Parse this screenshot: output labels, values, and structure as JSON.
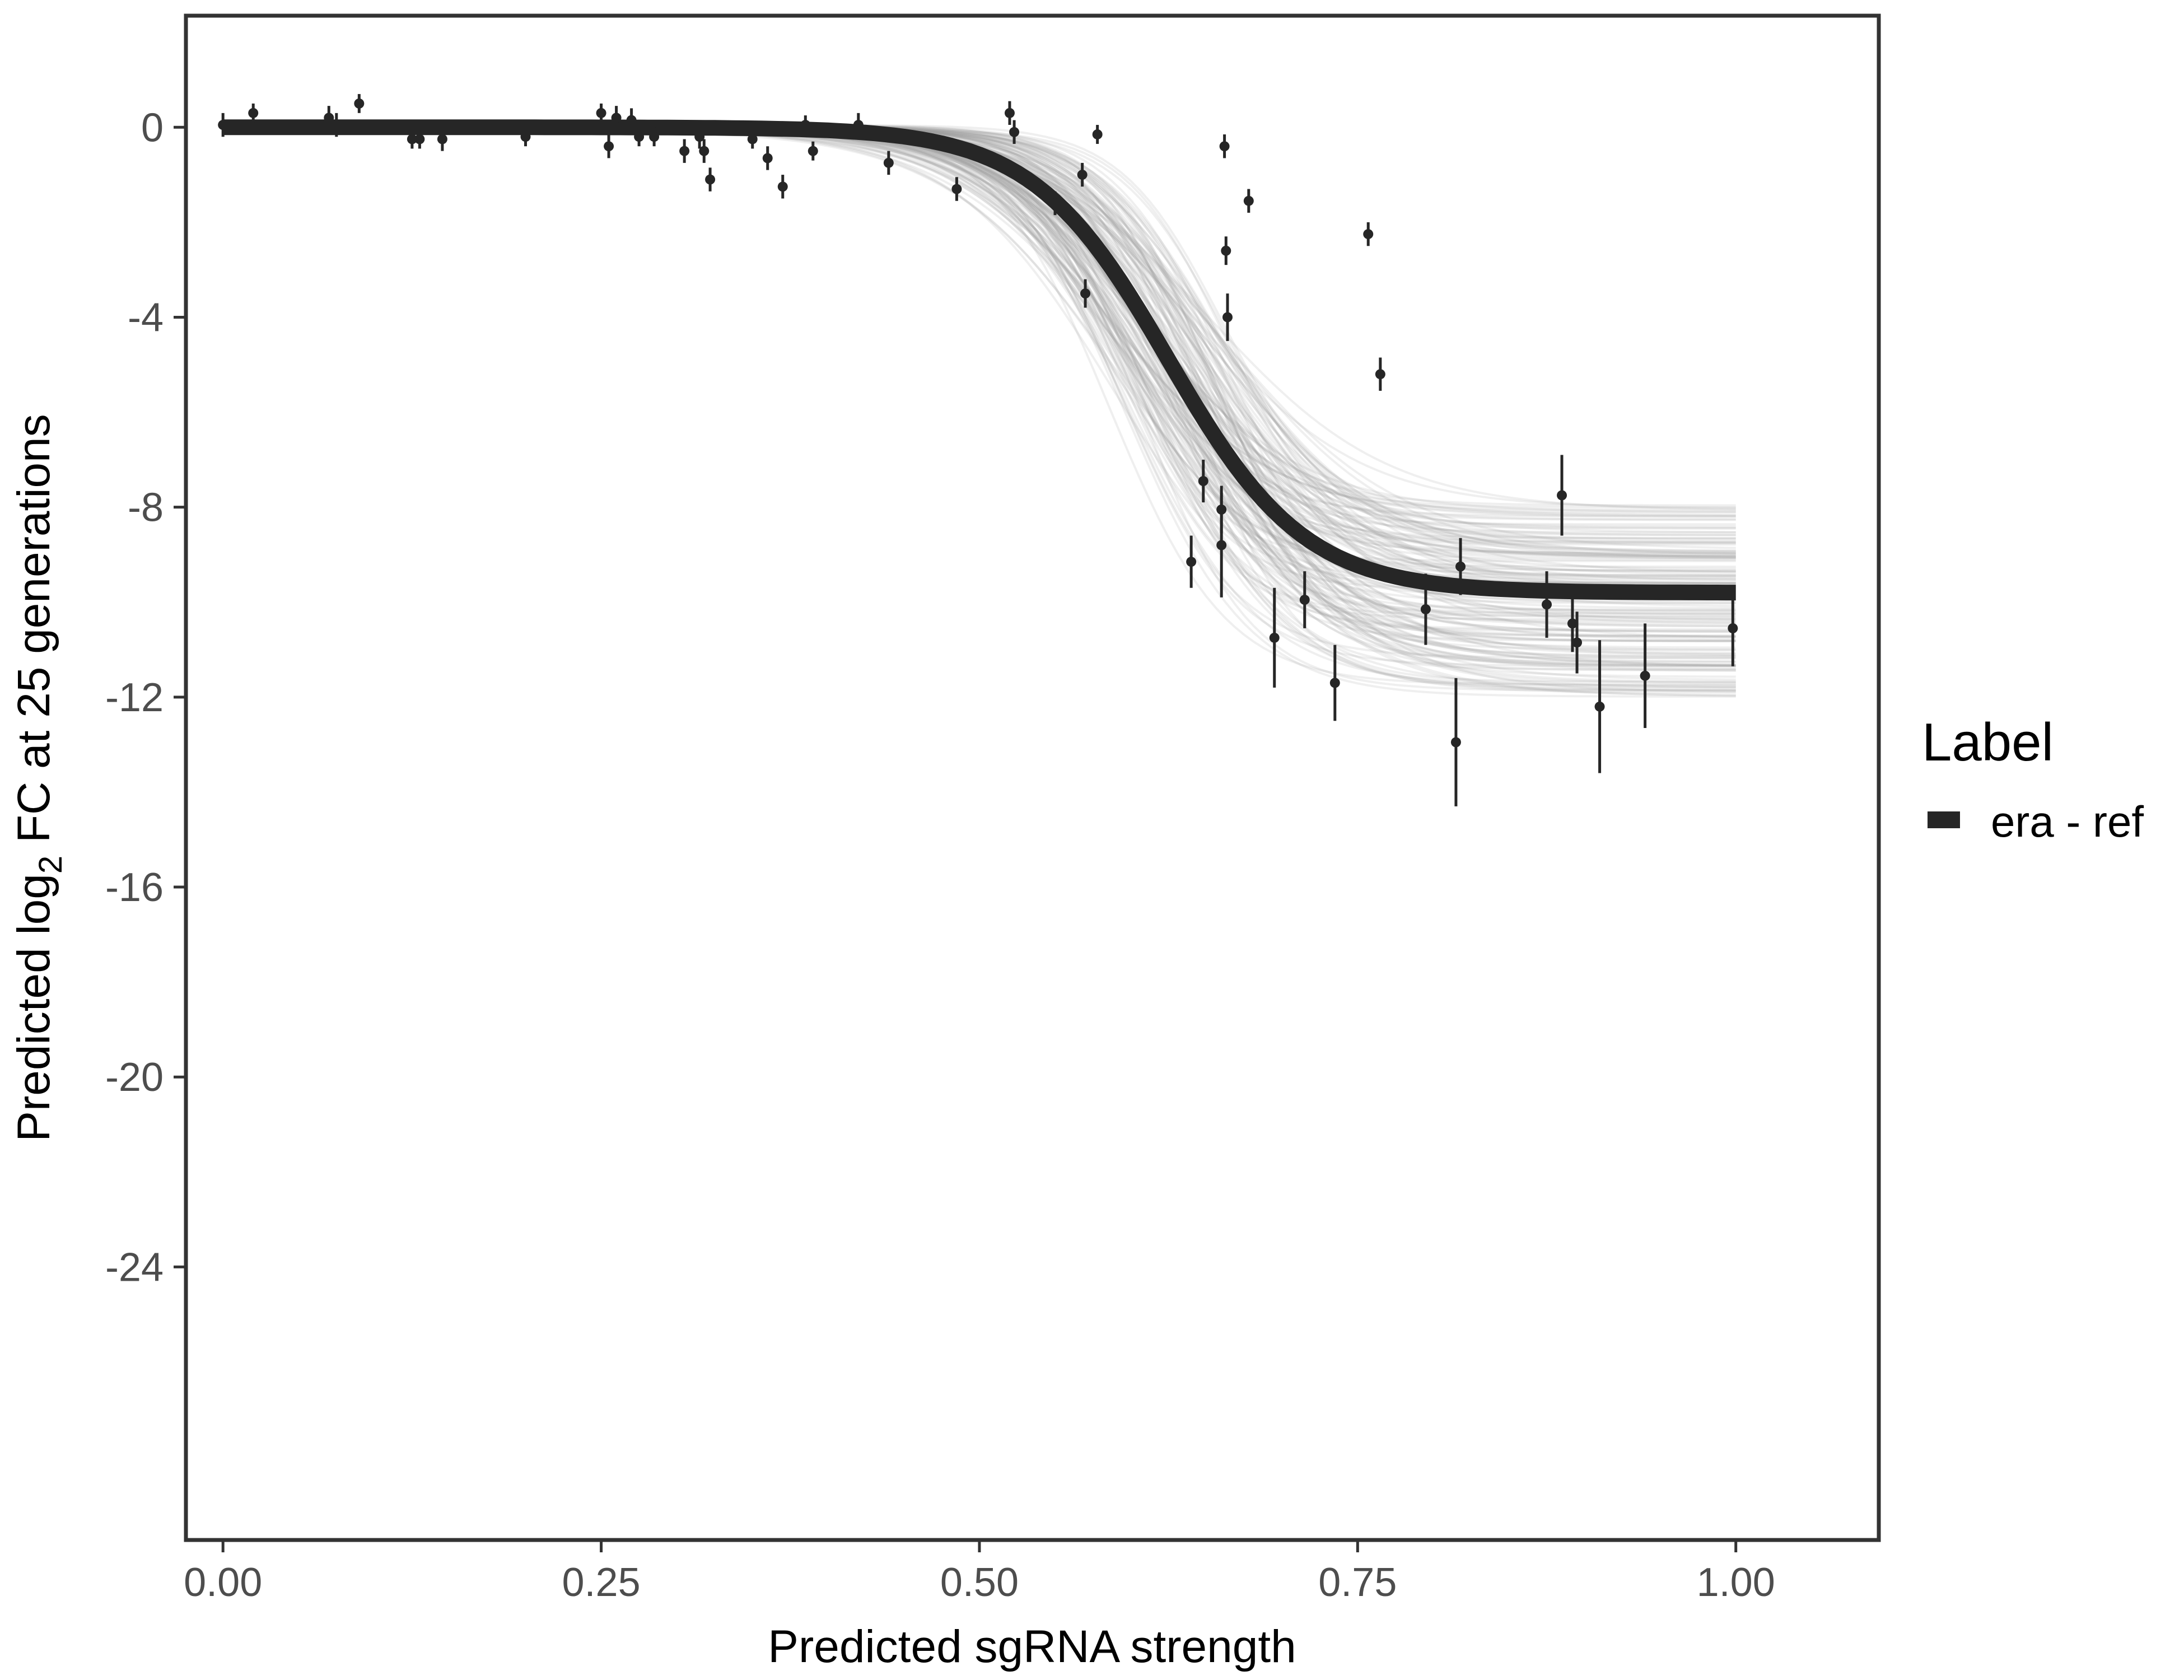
{
  "chart_data": {
    "type": "line",
    "title": "",
    "xlabel": "Predicted sgRNA strength",
    "ylabel": {
      "prefix": "Predicted  log",
      "subscript": "2",
      "suffix": " FC at 25 generations"
    },
    "xlim": [
      -0.0245,
      1.0945
    ],
    "ylim": [
      -29.75,
      2.35
    ],
    "grid": false,
    "x_ticks": [
      0,
      0.25,
      0.5,
      0.75,
      1
    ],
    "x_tick_labels": [
      "0.00",
      "0.25",
      "0.50",
      "0.75",
      "1.00"
    ],
    "y_ticks": [
      0,
      -4,
      -8,
      -12,
      -16,
      -20,
      -24
    ],
    "y_tick_labels": [
      "0",
      "-4",
      "-8",
      "-12",
      "-16",
      "-20",
      "-24"
    ],
    "legend": {
      "title": "Label",
      "position": "right",
      "entries": [
        {
          "label": "era - ref",
          "color": "#262626"
        }
      ]
    },
    "fit_curve": {
      "name": "era - ref",
      "model": "logistic",
      "upper": 0.0,
      "lower": -9.8,
      "midpoint": 0.625,
      "scale": 0.045,
      "x_range": [
        0,
        1
      ],
      "color": "#262626"
    },
    "posterior_draws": {
      "count": 160,
      "color": "#9e9e9e",
      "upper_range": [
        -0.05,
        0.05
      ],
      "lower_range": [
        -12.0,
        -7.9
      ],
      "midpoint_range": [
        0.585,
        0.665
      ],
      "scale_range": [
        0.032,
        0.06
      ]
    },
    "points": [
      {
        "x": 0.0,
        "y": 0.05,
        "lo": -0.2,
        "hi": 0.3
      },
      {
        "x": 0.02,
        "y": 0.3,
        "lo": 0.1,
        "hi": 0.5
      },
      {
        "x": 0.07,
        "y": 0.2,
        "lo": -0.05,
        "hi": 0.45
      },
      {
        "x": 0.075,
        "y": 0.05,
        "lo": -0.2,
        "hi": 0.3
      },
      {
        "x": 0.09,
        "y": 0.5,
        "lo": 0.3,
        "hi": 0.7
      },
      {
        "x": 0.125,
        "y": -0.25,
        "lo": -0.45,
        "hi": -0.05
      },
      {
        "x": 0.13,
        "y": -0.25,
        "lo": -0.45,
        "hi": -0.05
      },
      {
        "x": 0.145,
        "y": -0.25,
        "lo": -0.5,
        "hi": 0.0
      },
      {
        "x": 0.2,
        "y": -0.2,
        "lo": -0.4,
        "hi": 0.0
      },
      {
        "x": 0.25,
        "y": 0.3,
        "lo": 0.1,
        "hi": 0.5
      },
      {
        "x": 0.255,
        "y": -0.4,
        "lo": -0.65,
        "hi": -0.15
      },
      {
        "x": 0.26,
        "y": 0.2,
        "lo": -0.05,
        "hi": 0.45
      },
      {
        "x": 0.27,
        "y": 0.15,
        "lo": -0.1,
        "hi": 0.4
      },
      {
        "x": 0.275,
        "y": -0.2,
        "lo": -0.4,
        "hi": 0.0
      },
      {
        "x": 0.285,
        "y": -0.2,
        "lo": -0.4,
        "hi": 0.0
      },
      {
        "x": 0.305,
        "y": -0.5,
        "lo": -0.75,
        "hi": -0.25
      },
      {
        "x": 0.315,
        "y": -0.2,
        "lo": -0.45,
        "hi": 0.05
      },
      {
        "x": 0.318,
        "y": -0.5,
        "lo": -0.75,
        "hi": -0.25
      },
      {
        "x": 0.322,
        "y": -1.1,
        "lo": -1.35,
        "hi": -0.85
      },
      {
        "x": 0.35,
        "y": -0.25,
        "lo": -0.45,
        "hi": -0.05
      },
      {
        "x": 0.36,
        "y": -0.65,
        "lo": -0.9,
        "hi": -0.4
      },
      {
        "x": 0.37,
        "y": -1.25,
        "lo": -1.5,
        "hi": -1.0
      },
      {
        "x": 0.385,
        "y": 0.05,
        "lo": -0.15,
        "hi": 0.25
      },
      {
        "x": 0.39,
        "y": -0.5,
        "lo": -0.7,
        "hi": -0.3
      },
      {
        "x": 0.42,
        "y": 0.05,
        "lo": -0.2,
        "hi": 0.3
      },
      {
        "x": 0.44,
        "y": -0.75,
        "lo": -1.0,
        "hi": -0.5
      },
      {
        "x": 0.485,
        "y": -1.3,
        "lo": -1.55,
        "hi": -1.05
      },
      {
        "x": 0.52,
        "y": 0.3,
        "lo": 0.05,
        "hi": 0.55
      },
      {
        "x": 0.523,
        "y": -0.1,
        "lo": -0.35,
        "hi": 0.15
      },
      {
        "x": 0.55,
        "y": -1.6,
        "lo": -1.85,
        "hi": -1.35
      },
      {
        "x": 0.568,
        "y": -1.0,
        "lo": -1.25,
        "hi": -0.75
      },
      {
        "x": 0.57,
        "y": -3.5,
        "lo": -3.8,
        "hi": -3.2
      },
      {
        "x": 0.578,
        "y": -0.15,
        "lo": -0.35,
        "hi": 0.05
      },
      {
        "x": 0.64,
        "y": -9.15,
        "lo": -9.7,
        "hi": -8.6
      },
      {
        "x": 0.648,
        "y": -7.45,
        "lo": -7.9,
        "hi": -7.0
      },
      {
        "x": 0.66,
        "y": -8.05,
        "lo": -8.55,
        "hi": -7.55
      },
      {
        "x": 0.66,
        "y": -8.8,
        "lo": -9.9,
        "hi": -7.7
      },
      {
        "x": 0.662,
        "y": -0.4,
        "lo": -0.65,
        "hi": -0.15
      },
      {
        "x": 0.663,
        "y": -2.6,
        "lo": -2.9,
        "hi": -2.3
      },
      {
        "x": 0.664,
        "y": -4.0,
        "lo": -4.5,
        "hi": -3.5
      },
      {
        "x": 0.678,
        "y": -1.55,
        "lo": -1.8,
        "hi": -1.3
      },
      {
        "x": 0.695,
        "y": -10.75,
        "lo": -11.8,
        "hi": -9.7
      },
      {
        "x": 0.715,
        "y": -9.95,
        "lo": -10.55,
        "hi": -9.35
      },
      {
        "x": 0.735,
        "y": -11.7,
        "lo": -12.5,
        "hi": -10.9
      },
      {
        "x": 0.757,
        "y": -2.25,
        "lo": -2.5,
        "hi": -2.0
      },
      {
        "x": 0.765,
        "y": -5.2,
        "lo": -5.55,
        "hi": -4.85
      },
      {
        "x": 0.795,
        "y": -10.15,
        "lo": -10.9,
        "hi": -9.4
      },
      {
        "x": 0.815,
        "y": -12.95,
        "lo": -14.3,
        "hi": -11.6
      },
      {
        "x": 0.818,
        "y": -9.25,
        "lo": -9.85,
        "hi": -8.65
      },
      {
        "x": 0.875,
        "y": -10.05,
        "lo": -10.75,
        "hi": -9.35
      },
      {
        "x": 0.885,
        "y": -7.75,
        "lo": -8.6,
        "hi": -6.9
      },
      {
        "x": 0.892,
        "y": -10.45,
        "lo": -11.05,
        "hi": -9.85
      },
      {
        "x": 0.895,
        "y": -10.85,
        "lo": -11.5,
        "hi": -10.2
      },
      {
        "x": 0.91,
        "y": -12.2,
        "lo": -13.6,
        "hi": -10.8
      },
      {
        "x": 0.94,
        "y": -11.55,
        "lo": -12.65,
        "hi": -10.45
      },
      {
        "x": 0.998,
        "y": -10.55,
        "lo": -11.35,
        "hi": -9.75
      }
    ]
  }
}
